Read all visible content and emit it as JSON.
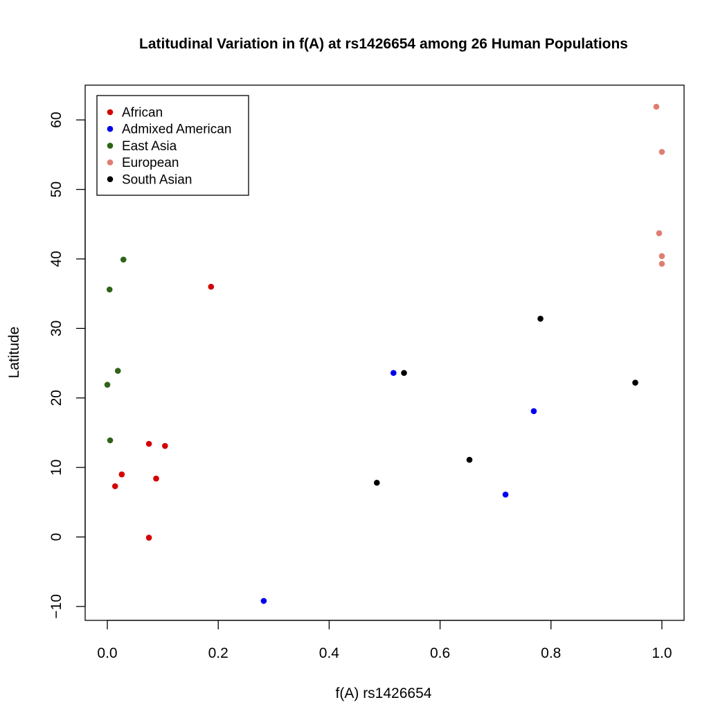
{
  "chart_data": {
    "type": "scatter",
    "title": "Latitudinal Variation in f(A) at rs1426654 among 26 Human Populations",
    "xlabel": "f(A) rs1426654",
    "ylabel": "Latitude",
    "xlim": [
      -0.04,
      1.04
    ],
    "ylim": [
      -12,
      65
    ],
    "x_ticks": [
      0.0,
      0.2,
      0.4,
      0.6,
      0.8,
      1.0
    ],
    "x_tick_labels": [
      "0.0",
      "0.2",
      "0.4",
      "0.6",
      "0.8",
      "1.0"
    ],
    "y_ticks": [
      -10,
      0,
      10,
      20,
      30,
      40,
      50,
      60
    ],
    "y_tick_labels": [
      "−10",
      "0",
      "10",
      "20",
      "30",
      "40",
      "50",
      "60"
    ],
    "grid": false,
    "legend_position": "top-left",
    "series": [
      {
        "name": "African",
        "color": "#d40000",
        "points": [
          {
            "x": 0.187,
            "y": 36.0
          },
          {
            "x": 0.075,
            "y": 13.4
          },
          {
            "x": 0.104,
            "y": 13.1
          },
          {
            "x": 0.026,
            "y": 9.0
          },
          {
            "x": 0.088,
            "y": 8.4
          },
          {
            "x": 0.014,
            "y": 7.3
          },
          {
            "x": 0.075,
            "y": -0.1
          }
        ]
      },
      {
        "name": "Admixed American",
        "color": "#0000f0",
        "points": [
          {
            "x": 0.516,
            "y": 23.6
          },
          {
            "x": 0.769,
            "y": 18.1
          },
          {
            "x": 0.718,
            "y": 6.1
          },
          {
            "x": 0.282,
            "y": -9.2
          }
        ]
      },
      {
        "name": "East Asia",
        "color": "#2e6418",
        "points": [
          {
            "x": 0.029,
            "y": 39.9
          },
          {
            "x": 0.004,
            "y": 35.6
          },
          {
            "x": 0.019,
            "y": 23.9
          },
          {
            "x": 0.0,
            "y": 21.9
          },
          {
            "x": 0.005,
            "y": 13.9
          }
        ]
      },
      {
        "name": "European",
        "color": "#de7e72",
        "points": [
          {
            "x": 0.99,
            "y": 61.9
          },
          {
            "x": 1.0,
            "y": 55.4
          },
          {
            "x": 0.995,
            "y": 43.7
          },
          {
            "x": 1.0,
            "y": 40.4
          },
          {
            "x": 1.0,
            "y": 39.3
          }
        ]
      },
      {
        "name": "South Asian",
        "color": "#000000",
        "points": [
          {
            "x": 0.781,
            "y": 31.4
          },
          {
            "x": 0.535,
            "y": 23.6
          },
          {
            "x": 0.952,
            "y": 22.2
          },
          {
            "x": 0.653,
            "y": 11.1
          },
          {
            "x": 0.486,
            "y": 7.8
          }
        ]
      }
    ]
  }
}
